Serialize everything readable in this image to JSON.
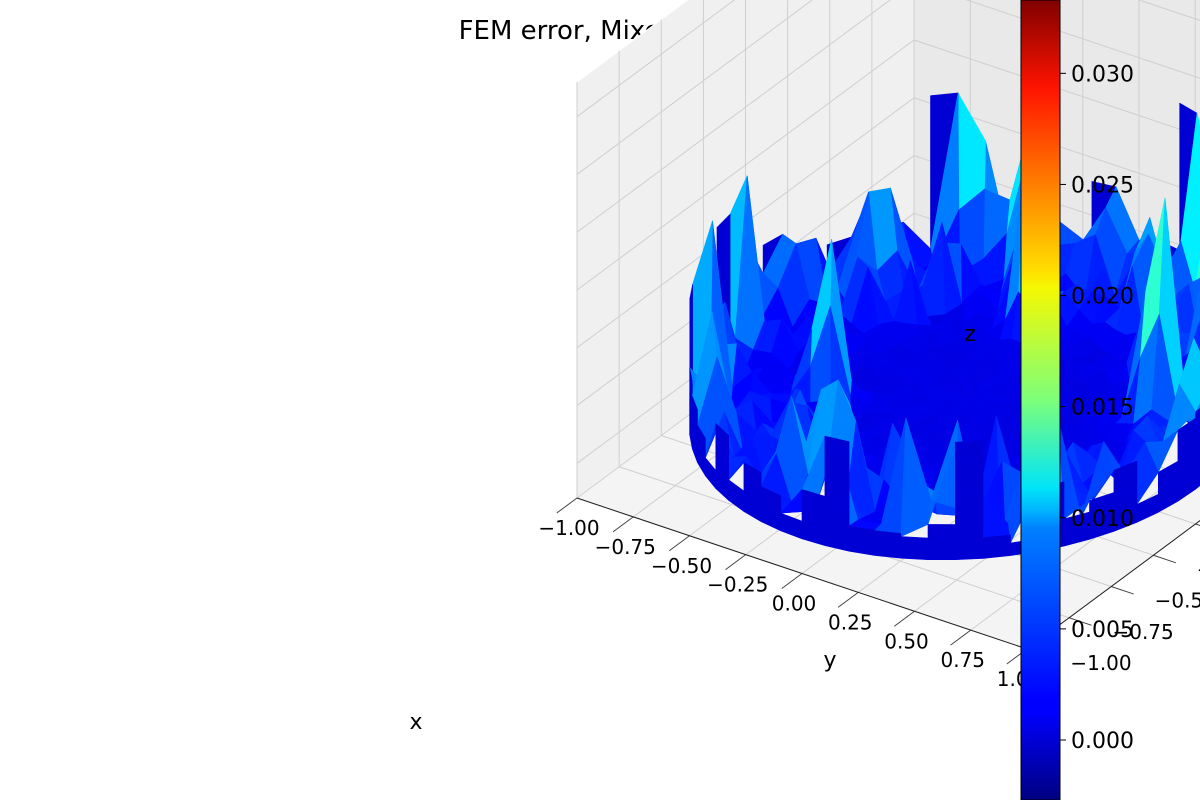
{
  "chart_data": {
    "type": "surface3d",
    "title": "FEM error, Mixed BC's",
    "xlabel": "x",
    "ylabel": "y",
    "zlabel": "z",
    "x_ticks": [
      "−1.00",
      "−0.75",
      "−0.50",
      "−0.25",
      "0.00",
      "0.25",
      "0.50",
      "0.75",
      "1.00"
    ],
    "y_ticks": [
      "−1.00",
      "−0.75",
      "−0.50",
      "−0.25",
      "0.00",
      "0.25",
      "0.50",
      "0.75",
      "1.00"
    ],
    "z_ticks": [
      "0.000",
      "0.005",
      "0.010",
      "0.015",
      "0.020",
      "0.025",
      "0.030"
    ],
    "xlim": [
      -1.0,
      1.0
    ],
    "ylim": [
      -1.0,
      1.0
    ],
    "zlim": [
      -0.003,
      0.033
    ],
    "colormap": "jet",
    "colorbar": {
      "ticks": [
        "0.000",
        "0.005",
        "0.010",
        "0.015",
        "0.020",
        "0.025",
        "0.030"
      ],
      "tick_values": [
        0.0,
        0.005,
        0.01,
        0.015,
        0.02,
        0.025,
        0.03
      ],
      "range": [
        -0.0027,
        0.0333
      ]
    },
    "domain": "unit disk",
    "max_error": 0.033,
    "peaks": [
      {
        "x": 0.95,
        "y": 0.3,
        "z": 0.033
      },
      {
        "x": 0.45,
        "y": 0.9,
        "z": 0.029
      },
      {
        "x": 0.65,
        "y": 0.25,
        "z": 0.023
      },
      {
        "x": -0.6,
        "y": 0.8,
        "z": 0.021
      },
      {
        "x": -0.95,
        "y": -0.1,
        "z": 0.016
      },
      {
        "x": 0.3,
        "y": 0.95,
        "z": 0.017
      },
      {
        "x": 0.85,
        "y": 0.45,
        "z": 0.018
      },
      {
        "x": 0.95,
        "y": 0.05,
        "z": 0.015
      },
      {
        "x": -0.45,
        "y": -0.25,
        "z": 0.015
      },
      {
        "x": -0.15,
        "y": 0.55,
        "z": 0.014
      },
      {
        "x": -0.05,
        "y": -0.75,
        "z": 0.013
      },
      {
        "x": -0.75,
        "y": 0.45,
        "z": 0.012
      },
      {
        "x": 0.6,
        "y": 0.65,
        "z": 0.012
      },
      {
        "x": -0.85,
        "y": -0.45,
        "z": 0.011
      },
      {
        "x": 0.2,
        "y": 0.75,
        "z": 0.01
      },
      {
        "x": -0.35,
        "y": 0.85,
        "z": 0.01
      },
      {
        "x": 0.1,
        "y": -0.95,
        "z": 0.009
      },
      {
        "x": 0.7,
        "y": -0.55,
        "z": 0.008
      },
      {
        "x": -0.6,
        "y": -0.7,
        "z": 0.008
      },
      {
        "x": 0.35,
        "y": -0.85,
        "z": 0.007
      }
    ]
  }
}
